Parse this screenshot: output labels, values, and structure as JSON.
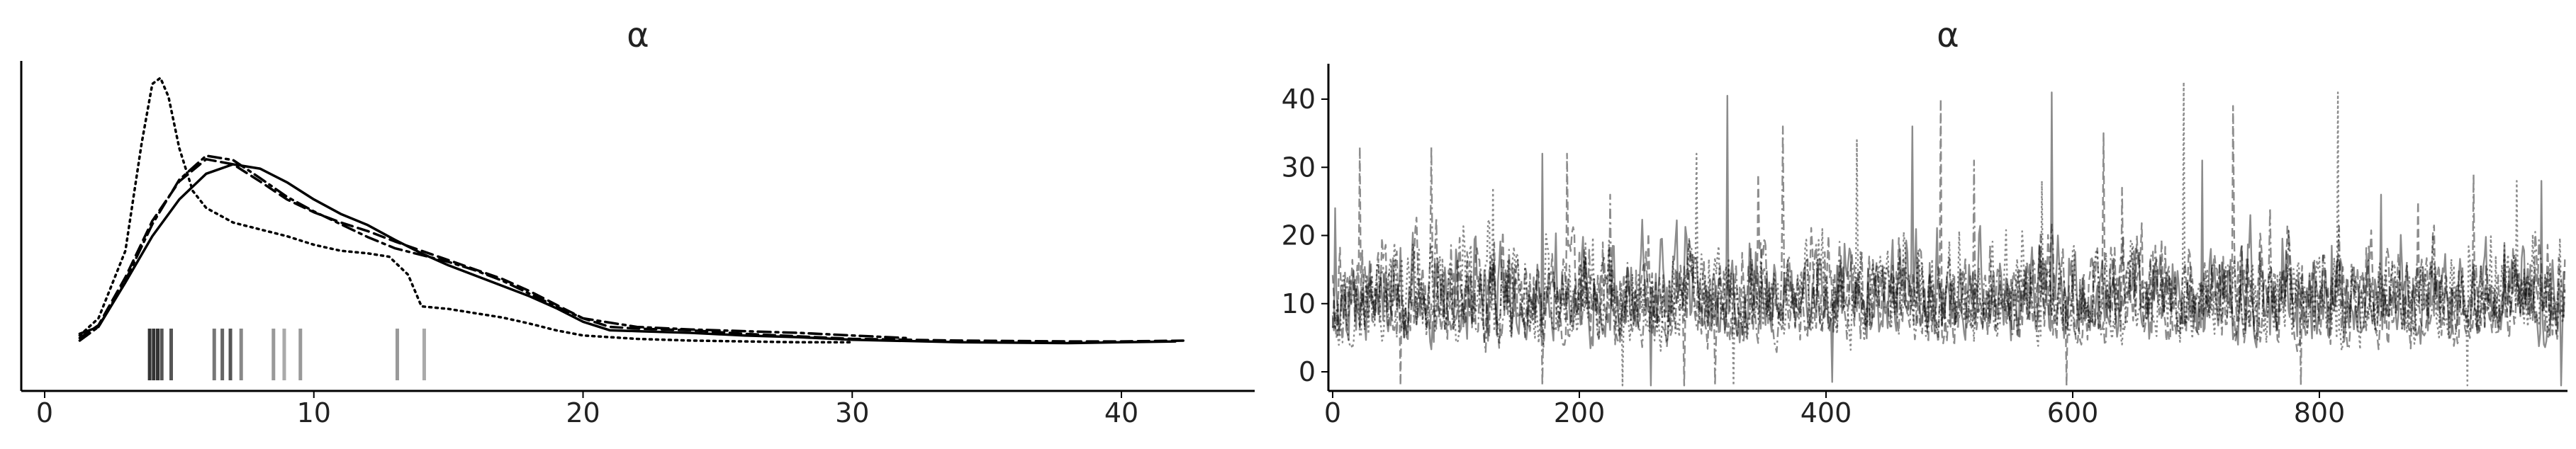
{
  "chart_data": [
    {
      "type": "line",
      "subtype": "kde-density-with-rug",
      "title": "α",
      "xlabel": "",
      "ylabel": "",
      "xlim": [
        -1,
        44
      ],
      "xticks": [
        0,
        10,
        20,
        30,
        40
      ],
      "yticks_shown": false,
      "grid": false,
      "legend": "none",
      "ylim": [
        0,
        0.34
      ],
      "series": [
        {
          "style": "solid",
          "x": [
            1.3,
            2,
            3,
            4,
            5,
            6,
            7,
            8,
            9,
            10,
            11,
            12,
            13,
            14,
            15,
            16,
            17,
            18,
            19,
            20,
            21,
            22,
            24,
            26,
            28,
            30,
            34,
            38,
            40,
            42
          ],
          "y": [
            0.018,
            0.026,
            0.078,
            0.132,
            0.175,
            0.205,
            0.216,
            0.211,
            0.195,
            0.175,
            0.158,
            0.145,
            0.128,
            0.112,
            0.098,
            0.086,
            0.074,
            0.062,
            0.048,
            0.032,
            0.022,
            0.021,
            0.019,
            0.016,
            0.014,
            0.011,
            0.008,
            0.007,
            0.008,
            0.009
          ]
        },
        {
          "style": "dashed",
          "x": [
            1.3,
            2,
            3,
            4,
            5,
            6,
            7,
            8,
            9,
            10,
            11,
            12,
            13,
            14,
            15,
            16,
            17,
            18,
            19,
            20,
            21,
            22,
            24,
            26,
            28,
            30,
            34,
            38,
            40,
            42.5
          ],
          "y": [
            0.013,
            0.028,
            0.084,
            0.15,
            0.196,
            0.222,
            0.216,
            0.196,
            0.175,
            0.16,
            0.148,
            0.138,
            0.126,
            0.115,
            0.104,
            0.093,
            0.082,
            0.068,
            0.052,
            0.036,
            0.026,
            0.024,
            0.022,
            0.018,
            0.015,
            0.012,
            0.01,
            0.009,
            0.009,
            0.01
          ]
        },
        {
          "style": "dashdot",
          "x": [
            1.3,
            2,
            3,
            4,
            5,
            6,
            7,
            8,
            9,
            10,
            11,
            12,
            13,
            14,
            15,
            16,
            17,
            18,
            19,
            20,
            22,
            24,
            26,
            28,
            30,
            32
          ],
          "y": [
            0.01,
            0.026,
            0.08,
            0.146,
            0.198,
            0.226,
            0.221,
            0.2,
            0.178,
            0.161,
            0.146,
            0.131,
            0.118,
            0.11,
            0.102,
            0.092,
            0.08,
            0.065,
            0.05,
            0.036,
            0.026,
            0.023,
            0.021,
            0.019,
            0.016,
            0.013
          ]
        },
        {
          "style": "dotted",
          "x": [
            1.3,
            2,
            3,
            3.6,
            4,
            4.3,
            4.6,
            5,
            5.5,
            6,
            7,
            8,
            9,
            10,
            11,
            12,
            12.8,
            13.5,
            14,
            15,
            16,
            17,
            18,
            19,
            20,
            22,
            24,
            26,
            28,
            30
          ],
          "y": [
            0.016,
            0.036,
            0.115,
            0.24,
            0.31,
            0.317,
            0.295,
            0.235,
            0.185,
            0.165,
            0.148,
            0.14,
            0.132,
            0.122,
            0.115,
            0.112,
            0.108,
            0.087,
            0.05,
            0.047,
            0.042,
            0.037,
            0.03,
            0.022,
            0.016,
            0.012,
            0.01,
            0.009,
            0.008,
            0.008
          ]
        }
      ],
      "rug_points": [
        {
          "x": 3.9,
          "shade": "#333333"
        },
        {
          "x": 4.05,
          "shade": "#333333"
        },
        {
          "x": 4.2,
          "shade": "#333333"
        },
        {
          "x": 4.35,
          "shade": "#555555"
        },
        {
          "x": 4.7,
          "shade": "#555555"
        },
        {
          "x": 6.3,
          "shade": "#777777"
        },
        {
          "x": 6.6,
          "shade": "#666666"
        },
        {
          "x": 6.9,
          "shade": "#555555"
        },
        {
          "x": 7.3,
          "shade": "#888888"
        },
        {
          "x": 8.5,
          "shade": "#999999"
        },
        {
          "x": 8.9,
          "shade": "#aaaaaa"
        },
        {
          "x": 9.5,
          "shade": "#999999"
        },
        {
          "x": 13.1,
          "shade": "#999999"
        },
        {
          "x": 14.1,
          "shade": "#aaaaaa"
        }
      ],
      "line_color": "#000000"
    },
    {
      "type": "line",
      "subtype": "trace-plot",
      "title": "α",
      "xlabel": "",
      "ylabel": "",
      "xlim": [
        0,
        1000
      ],
      "ylim": [
        -3,
        45
      ],
      "xticks": [
        0,
        200,
        400,
        600,
        800
      ],
      "yticks": [
        0,
        10,
        20,
        30,
        40
      ],
      "grid": false,
      "legend": "none",
      "series_count": 4,
      "series_styles": [
        "solid",
        "dashed",
        "dashdot",
        "dotted"
      ],
      "samples_per_chain": 1000,
      "typical_range": [
        3,
        20
      ],
      "median": 9,
      "color": "#000000",
      "opacity": 0.45,
      "peaks": [
        {
          "x": 2,
          "y": 24
        },
        {
          "x": 22,
          "y": 33
        },
        {
          "x": 80,
          "y": 33
        },
        {
          "x": 130,
          "y": 27
        },
        {
          "x": 170,
          "y": 32
        },
        {
          "x": 190,
          "y": 32
        },
        {
          "x": 225,
          "y": 26
        },
        {
          "x": 295,
          "y": 32
        },
        {
          "x": 320,
          "y": 40.5
        },
        {
          "x": 345,
          "y": 29
        },
        {
          "x": 365,
          "y": 36
        },
        {
          "x": 425,
          "y": 34
        },
        {
          "x": 470,
          "y": 36
        },
        {
          "x": 493,
          "y": 40
        },
        {
          "x": 520,
          "y": 31
        },
        {
          "x": 575,
          "y": 28
        },
        {
          "x": 583,
          "y": 41
        },
        {
          "x": 625,
          "y": 35
        },
        {
          "x": 640,
          "y": 27
        },
        {
          "x": 690,
          "y": 42.5
        },
        {
          "x": 705,
          "y": 31
        },
        {
          "x": 730,
          "y": 39
        },
        {
          "x": 760,
          "y": 24
        },
        {
          "x": 815,
          "y": 41
        },
        {
          "x": 850,
          "y": 26
        },
        {
          "x": 880,
          "y": 25
        },
        {
          "x": 925,
          "y": 29
        },
        {
          "x": 960,
          "y": 28
        },
        {
          "x": 980,
          "y": 28
        }
      ],
      "troughs": [
        {
          "x": 55,
          "y": -2
        },
        {
          "x": 170,
          "y": -2
        },
        {
          "x": 235,
          "y": -2
        },
        {
          "x": 258,
          "y": -2
        },
        {
          "x": 285,
          "y": -2
        },
        {
          "x": 310,
          "y": -2
        },
        {
          "x": 325,
          "y": -2
        },
        {
          "x": 405,
          "y": -1.5
        },
        {
          "x": 595,
          "y": -2
        },
        {
          "x": 785,
          "y": -2
        },
        {
          "x": 920,
          "y": -2
        },
        {
          "x": 996,
          "y": -2
        }
      ]
    }
  ]
}
